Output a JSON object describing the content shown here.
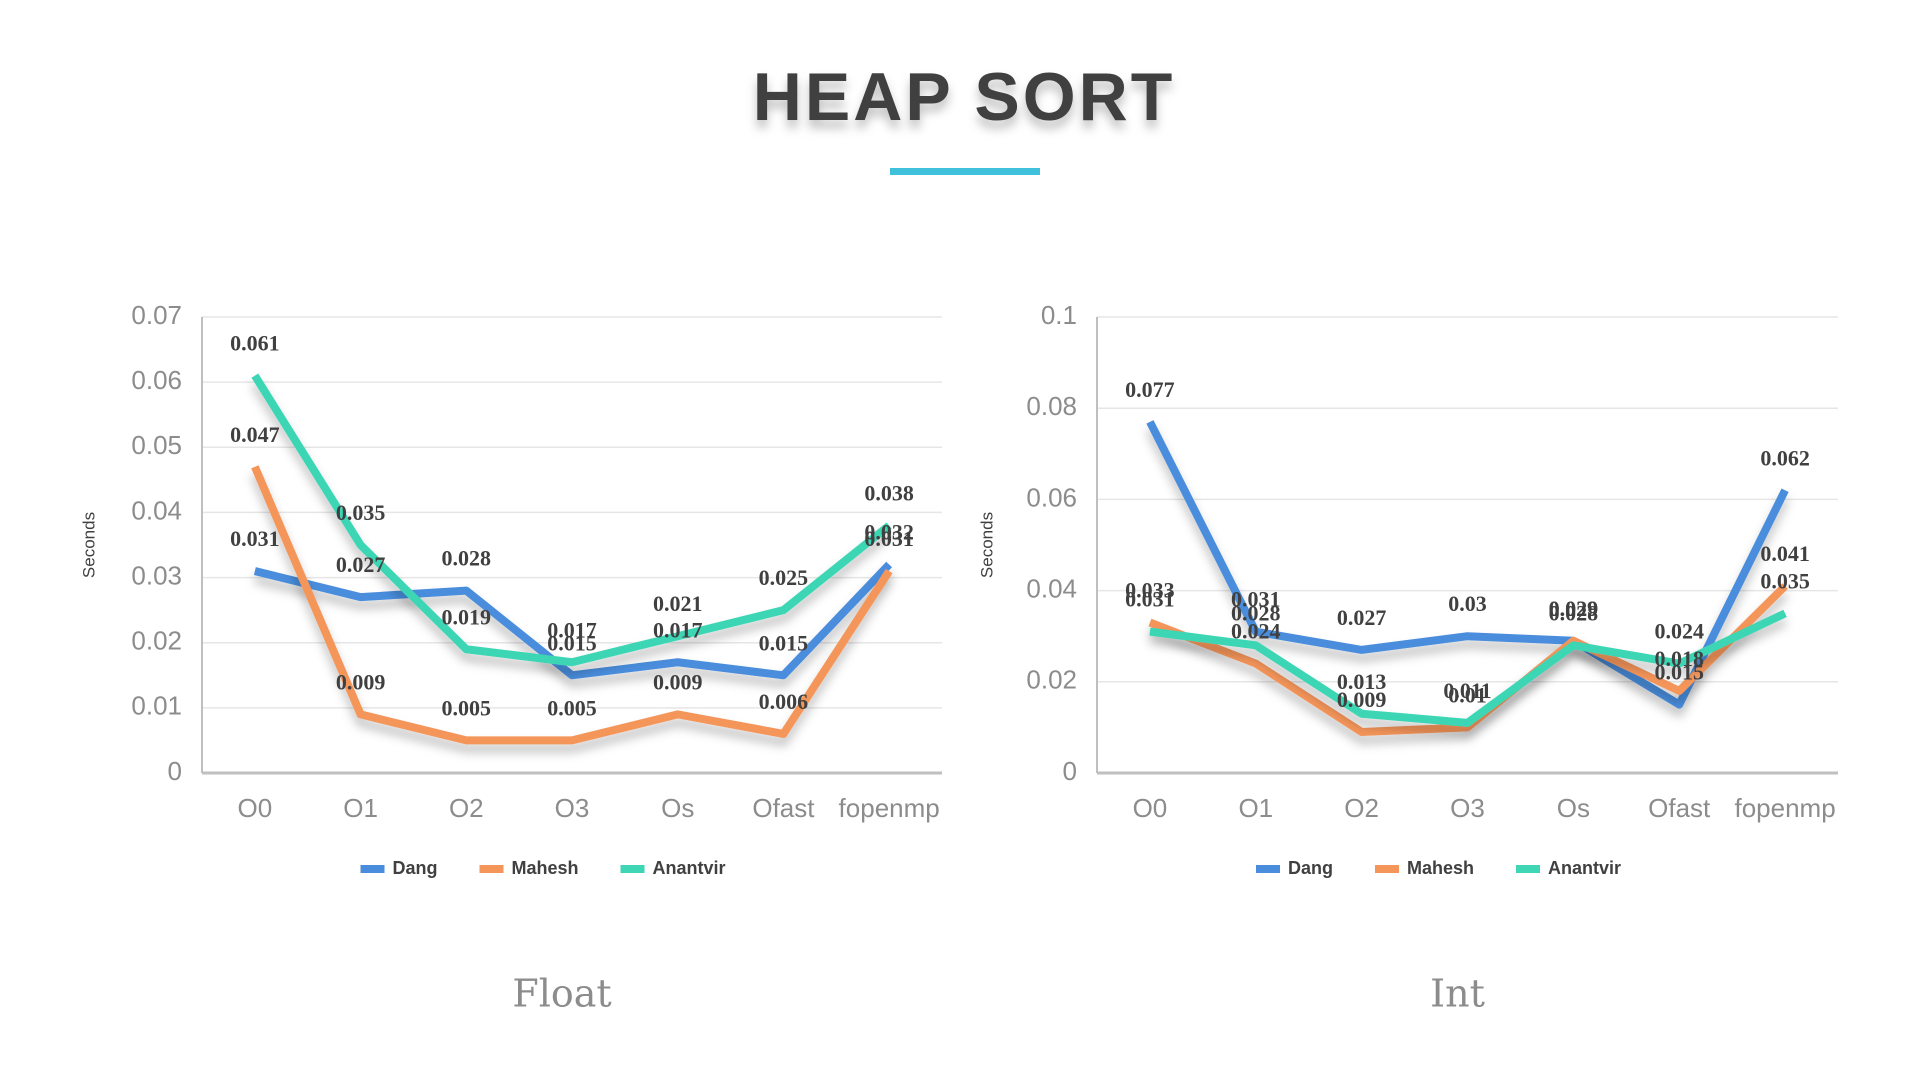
{
  "title": "HEAP SORT",
  "chart_data": [
    {
      "type": "line",
      "caption": "Float",
      "y_label": "Seconds",
      "categories": [
        "O0",
        "O1",
        "O2",
        "O3",
        "Os",
        "Ofast",
        "fopenmp"
      ],
      "series": [
        {
          "name": "Dang",
          "color": "#4a8ddc",
          "values": [
            0.031,
            0.027,
            0.028,
            0.015,
            0.017,
            0.015,
            0.032
          ]
        },
        {
          "name": "Mahesh",
          "color": "#f4955a",
          "values": [
            0.047,
            0.009,
            0.005,
            0.005,
            0.009,
            0.006,
            0.031
          ]
        },
        {
          "name": "Anantvir",
          "color": "#3ed6b5",
          "values": [
            0.061,
            0.035,
            0.019,
            0.017,
            0.021,
            0.025,
            0.038
          ]
        }
      ],
      "ylim": [
        0,
        0.07
      ],
      "yticks": [
        0,
        0.01,
        0.02,
        0.03,
        0.04,
        0.05,
        0.06,
        0.07
      ],
      "grid": true,
      "legend": "bottom"
    },
    {
      "type": "line",
      "caption": "Int",
      "y_label": "Seconds",
      "categories": [
        "O0",
        "O1",
        "O2",
        "O3",
        "Os",
        "Ofast",
        "fopenmp"
      ],
      "series": [
        {
          "name": "Dang",
          "color": "#4a8ddc",
          "values": [
            0.077,
            0.031,
            0.027,
            0.03,
            0.029,
            0.015,
            0.062
          ]
        },
        {
          "name": "Mahesh",
          "color": "#f4955a",
          "values": [
            0.033,
            0.024,
            0.009,
            0.01,
            0.029,
            0.018,
            0.041
          ]
        },
        {
          "name": "Anantvir",
          "color": "#3ed6b5",
          "values": [
            0.031,
            0.028,
            0.013,
            0.011,
            0.028,
            0.024,
            0.035
          ]
        }
      ],
      "ylim": [
        0,
        0.1
      ],
      "yticks": [
        0,
        0.02,
        0.04,
        0.06,
        0.08,
        0.1
      ],
      "grid": true,
      "legend": "bottom"
    }
  ]
}
